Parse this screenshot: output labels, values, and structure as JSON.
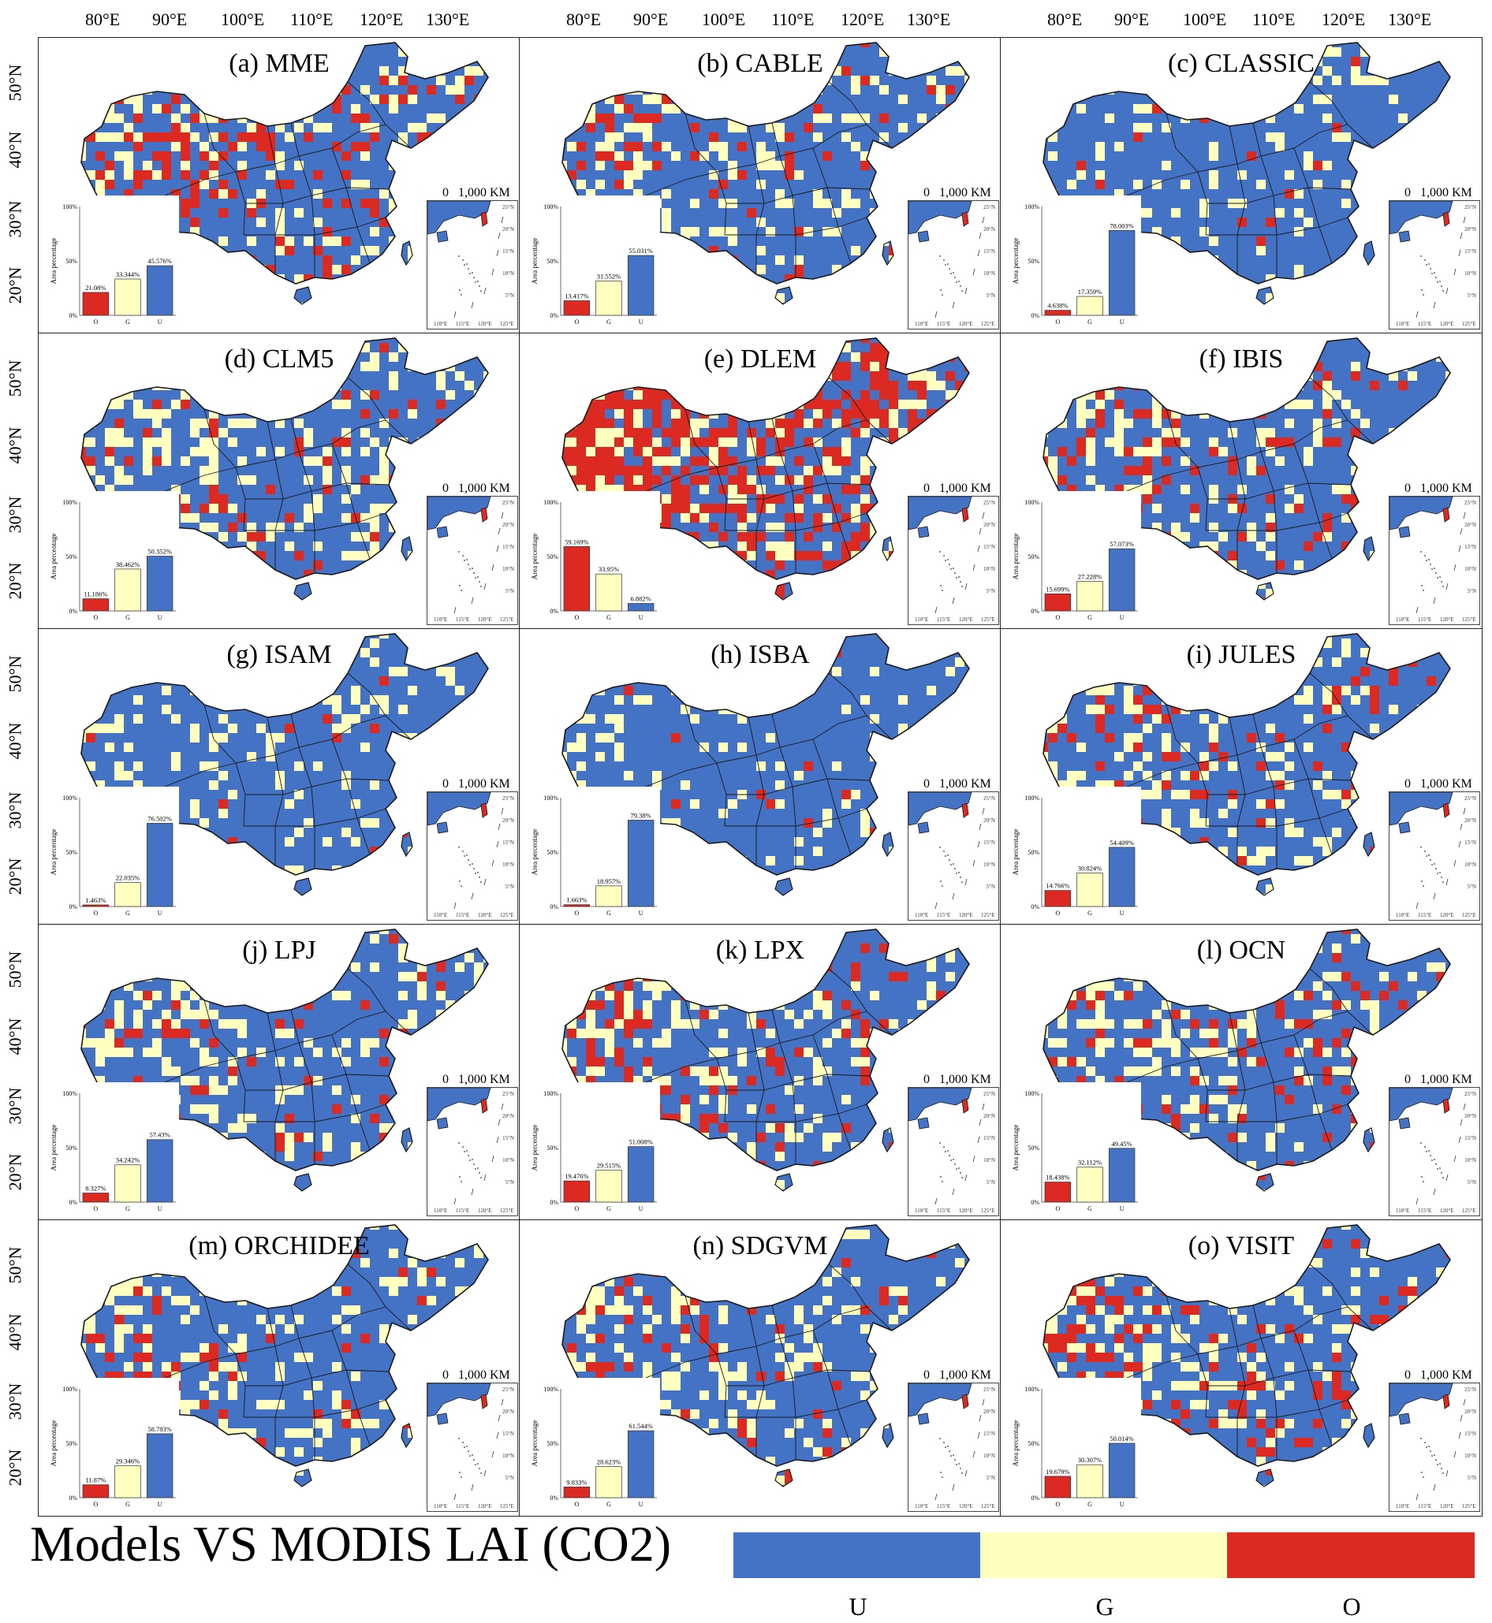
{
  "figure": {
    "lon_ticks": [
      "80°E",
      "90°E",
      "100°E",
      "110°E",
      "120°E",
      "130°E"
    ],
    "lat_ticks": [
      "50°N",
      "40°N",
      "30°N",
      "20°N"
    ],
    "scale_bar": {
      "zero": "0",
      "distance": "1,000 KM"
    },
    "bar_chart_axis": {
      "ylabel": "Area percentage",
      "yticks": [
        "100%",
        "50%",
        "0%"
      ],
      "categories": [
        "O",
        "G",
        "U"
      ]
    },
    "inset": {
      "lat_ticks": [
        "25°N",
        "20°N",
        "15°N",
        "10°N",
        "5°N"
      ],
      "lon_ticks": [
        "110°E",
        "115°E",
        "120°E",
        "125°E"
      ]
    }
  },
  "colors": {
    "U": "#4472c4",
    "G": "#ffffc0",
    "O": "#dc2a22",
    "border": "#1a1a1a"
  },
  "panels": [
    {
      "title": "(a) MME",
      "O": "21.08%",
      "G": "33.344%",
      "U": "45.576%"
    },
    {
      "title": "(b) CABLE",
      "O": "13.417%",
      "G": "31.552%",
      "U": "55.031%"
    },
    {
      "title": "(c) CLASSIC",
      "O": "4.638%",
      "G": "17.359%",
      "U": "78.003%"
    },
    {
      "title": "(d) CLM5",
      "O": "11.186%",
      "G": "38.462%",
      "U": "50.352%"
    },
    {
      "title": "(e) DLEM",
      "O": "59.169%",
      "G": "33.95%",
      "U": "6.882%"
    },
    {
      "title": "(f) IBIS",
      "O": "15.699%",
      "G": "27.228%",
      "U": "57.073%"
    },
    {
      "title": "(g) ISAM",
      "O": "1.463%",
      "G": "22.035%",
      "U": "76.502%"
    },
    {
      "title": "(h) ISBA",
      "O": "1.663%",
      "G": "18.957%",
      "U": "79.38%"
    },
    {
      "title": "(i) JULES",
      "O": "14.766%",
      "G": "30.824%",
      "U": "54.409%"
    },
    {
      "title": "(j) LPJ",
      "O": "8.327%",
      "G": "34.242%",
      "U": "57.43%"
    },
    {
      "title": "(k) LPX",
      "O": "19.476%",
      "G": "29.515%",
      "U": "51.008%"
    },
    {
      "title": "(l) OCN",
      "O": "18.438%",
      "G": "32.112%",
      "U": "49.45%"
    },
    {
      "title": "(m) ORCHIDEE",
      "O": "11.87%",
      "G": "29.346%",
      "U": "58.783%"
    },
    {
      "title": "(n) SDGVM",
      "O": "9.833%",
      "G": "28.623%",
      "U": "61.544%"
    },
    {
      "title": "(o) VISIT",
      "O": "19.679%",
      "G": "30.307%",
      "U": "50.014%"
    }
  ],
  "chart_data": [
    {
      "type": "bar",
      "title": "(a) MME",
      "categories": [
        "O",
        "G",
        "U"
      ],
      "values": [
        21.08,
        33.344,
        45.576
      ],
      "ylabel": "Area percentage",
      "ylim": [
        0,
        100
      ]
    },
    {
      "type": "bar",
      "title": "(b) CABLE",
      "categories": [
        "O",
        "G",
        "U"
      ],
      "values": [
        13.417,
        31.552,
        55.031
      ],
      "ylabel": "Area percentage",
      "ylim": [
        0,
        100
      ]
    },
    {
      "type": "bar",
      "title": "(c) CLASSIC",
      "categories": [
        "O",
        "G",
        "U"
      ],
      "values": [
        4.638,
        17.359,
        78.003
      ],
      "ylabel": "Area percentage",
      "ylim": [
        0,
        100
      ]
    },
    {
      "type": "bar",
      "title": "(d) CLM5",
      "categories": [
        "O",
        "G",
        "U"
      ],
      "values": [
        11.186,
        38.462,
        50.352
      ],
      "ylabel": "Area percentage",
      "ylim": [
        0,
        100
      ]
    },
    {
      "type": "bar",
      "title": "(e) DLEM",
      "categories": [
        "O",
        "G",
        "U"
      ],
      "values": [
        59.169,
        33.95,
        6.882
      ],
      "ylabel": "Area percentage",
      "ylim": [
        0,
        100
      ]
    },
    {
      "type": "bar",
      "title": "(f) IBIS",
      "categories": [
        "O",
        "G",
        "U"
      ],
      "values": [
        15.699,
        27.228,
        57.073
      ],
      "ylabel": "Area percentage",
      "ylim": [
        0,
        100
      ]
    },
    {
      "type": "bar",
      "title": "(g) ISAM",
      "categories": [
        "O",
        "G",
        "U"
      ],
      "values": [
        1.463,
        22.035,
        76.502
      ],
      "ylabel": "Area percentage",
      "ylim": [
        0,
        100
      ]
    },
    {
      "type": "bar",
      "title": "(h) ISBA",
      "categories": [
        "O",
        "G",
        "U"
      ],
      "values": [
        1.663,
        18.957,
        79.38
      ],
      "ylabel": "Area percentage",
      "ylim": [
        0,
        100
      ]
    },
    {
      "type": "bar",
      "title": "(i) JULES",
      "categories": [
        "O",
        "G",
        "U"
      ],
      "values": [
        14.766,
        30.824,
        54.409
      ],
      "ylabel": "Area percentage",
      "ylim": [
        0,
        100
      ]
    },
    {
      "type": "bar",
      "title": "(j) LPJ",
      "categories": [
        "O",
        "G",
        "U"
      ],
      "values": [
        8.327,
        34.242,
        57.43
      ],
      "ylabel": "Area percentage",
      "ylim": [
        0,
        100
      ]
    },
    {
      "type": "bar",
      "title": "(k) LPX",
      "categories": [
        "O",
        "G",
        "U"
      ],
      "values": [
        19.476,
        29.515,
        51.008
      ],
      "ylabel": "Area percentage",
      "ylim": [
        0,
        100
      ]
    },
    {
      "type": "bar",
      "title": "(l) OCN",
      "categories": [
        "O",
        "G",
        "U"
      ],
      "values": [
        18.438,
        32.112,
        49.45
      ],
      "ylabel": "Area percentage",
      "ylim": [
        0,
        100
      ]
    },
    {
      "type": "bar",
      "title": "(m) ORCHIDEE",
      "categories": [
        "O",
        "G",
        "U"
      ],
      "values": [
        11.87,
        29.346,
        58.783
      ],
      "ylabel": "Area percentage",
      "ylim": [
        0,
        100
      ]
    },
    {
      "type": "bar",
      "title": "(n) SDGVM",
      "categories": [
        "O",
        "G",
        "U"
      ],
      "values": [
        9.833,
        28.623,
        61.544
      ],
      "ylabel": "Area percentage",
      "ylim": [
        0,
        100
      ]
    },
    {
      "type": "bar",
      "title": "(o) VISIT",
      "categories": [
        "O",
        "G",
        "U"
      ],
      "values": [
        19.679,
        30.307,
        50.014
      ],
      "ylabel": "Area percentage",
      "ylim": [
        0,
        100
      ]
    }
  ],
  "legend": {
    "title": "Models VS MODIS LAI (CO2)",
    "items": [
      {
        "key": "U",
        "label": "U"
      },
      {
        "key": "G",
        "label": "G"
      },
      {
        "key": "O",
        "label": "O"
      }
    ]
  }
}
